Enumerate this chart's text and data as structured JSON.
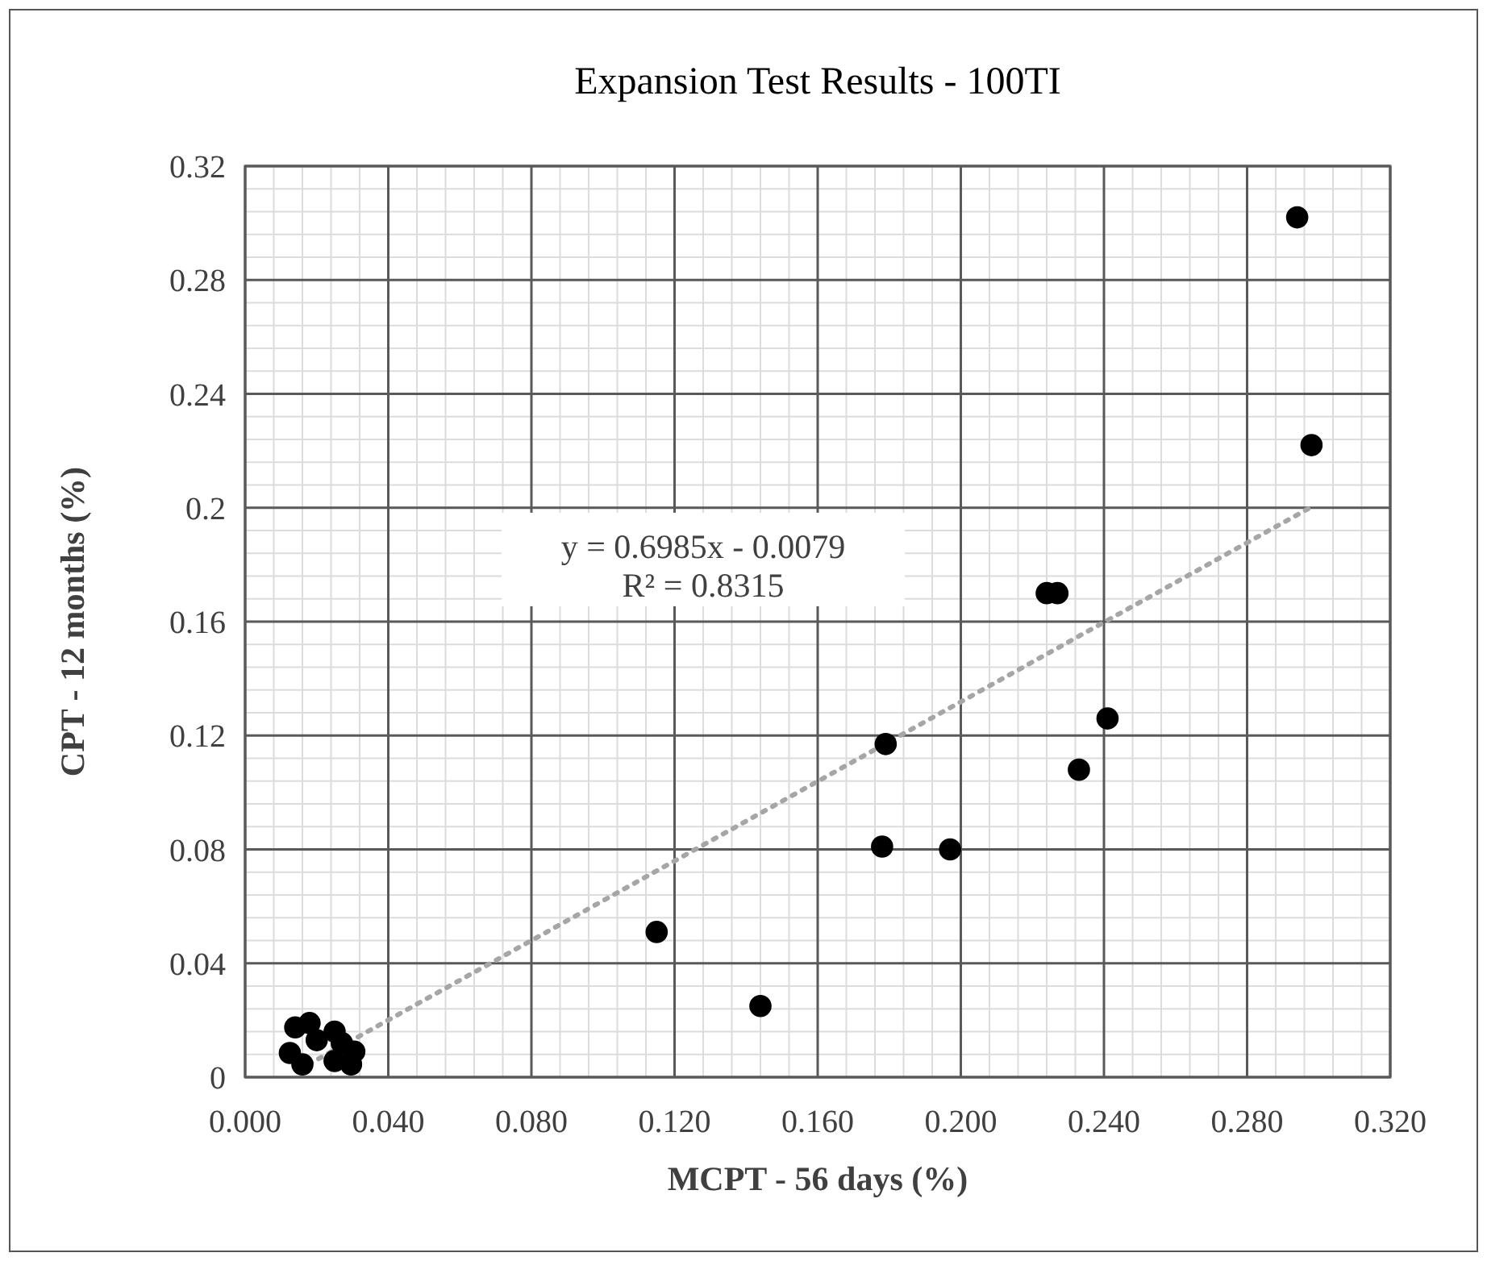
{
  "chart_data": {
    "type": "scatter",
    "title": "Expansion Test Results - 100TI",
    "xlabel": "MCPT - 56 days (%)",
    "ylabel": "CPT - 12 months (%)",
    "xlim": [
      0,
      0.32
    ],
    "ylim": [
      0,
      0.32
    ],
    "xticks": [
      {
        "value": 0,
        "label": "0.000"
      },
      {
        "value": 0.04,
        "label": "0.040"
      },
      {
        "value": 0.08,
        "label": "0.080"
      },
      {
        "value": 0.12,
        "label": "0.120"
      },
      {
        "value": 0.16,
        "label": "0.160"
      },
      {
        "value": 0.2,
        "label": "0.200"
      },
      {
        "value": 0.24,
        "label": "0.240"
      },
      {
        "value": 0.28,
        "label": "0.280"
      },
      {
        "value": 0.32,
        "label": "0.320"
      }
    ],
    "yticks": [
      0,
      0.04,
      0.08,
      0.12,
      0.16,
      0.2,
      0.24,
      0.28,
      0.32
    ],
    "grid": true,
    "marker": "circle",
    "series": [
      {
        "color": "#000000",
        "x": [
          0.294,
          0.298,
          0.224,
          0.227,
          0.241,
          0.233,
          0.179,
          0.178,
          0.197,
          0.115,
          0.144,
          0.014,
          0.018,
          0.0125,
          0.016,
          0.025,
          0.027,
          0.025,
          0.0305,
          0.0296,
          0.02
        ],
        "values": [
          0.302,
          0.222,
          0.17,
          0.17,
          0.126,
          0.108,
          0.117,
          0.081,
          0.08,
          0.051,
          0.025,
          0.0175,
          0.019,
          0.0085,
          0.0045,
          0.016,
          0.012,
          0.0057,
          0.009,
          0.0045,
          0.013
        ]
      },
      {
        "type": "line",
        "color": "#a6a6a6",
        "line_style": "dotted",
        "marker": "none",
        "x": [
          0.015,
          0.298
        ],
        "values": [
          0.0026,
          0.2003
        ]
      }
    ],
    "annotations": [
      "y = 0.6985x - 0.0079",
      "R² = 0.8315"
    ]
  }
}
